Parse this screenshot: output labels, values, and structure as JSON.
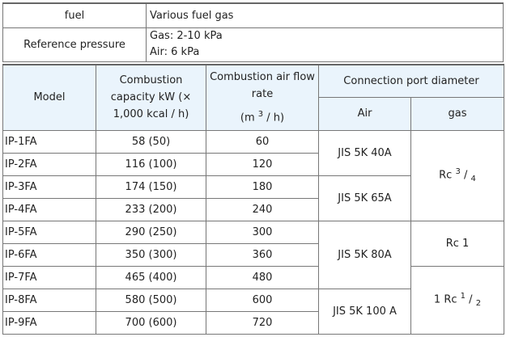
{
  "spec": {
    "fuel_label": "fuel",
    "fuel_value": "Various fuel gas",
    "pressure_label": "Reference pressure",
    "pressure_gas": "Gas: 2-10 kPa",
    "pressure_air": "Air: 6 kPa"
  },
  "table": {
    "headers": {
      "model": "Model",
      "capacity": "Combustion capacity kW (× 1,000 kcal / h)",
      "airflow": "Combustion air flow rate",
      "airflow_unit_pre": "(m",
      "airflow_unit_sup": "3",
      "airflow_unit_post": "/ h)",
      "connection": "Connection port diameter",
      "air": "Air",
      "gas": "gas"
    },
    "rows": [
      {
        "model": "IP-1FA",
        "capacity": "58 (50)",
        "airflow": "60"
      },
      {
        "model": "IP-2FA",
        "capacity": "116 (100)",
        "airflow": "120"
      },
      {
        "model": "IP-3FA",
        "capacity": "174 (150)",
        "airflow": "180"
      },
      {
        "model": "IP-4FA",
        "capacity": "233 (200)",
        "airflow": "240"
      },
      {
        "model": "IP-5FA",
        "capacity": "290 (250)",
        "airflow": "300"
      },
      {
        "model": "IP-6FA",
        "capacity": "350 (300)",
        "airflow": "360"
      },
      {
        "model": "IP-7FA",
        "capacity": "465 (400)",
        "airflow": "480"
      },
      {
        "model": "IP-8FA",
        "capacity": "580 (500)",
        "airflow": "600"
      },
      {
        "model": "IP-9FA",
        "capacity": "700 (600)",
        "airflow": "720"
      }
    ],
    "air_ports": [
      "JIS 5K 40A",
      "JIS 5K 65A",
      "JIS 5K 80A",
      "JIS 5K 100 A"
    ],
    "gas_ports": [
      {
        "pre": "Rc",
        "sup": "3",
        "sub": "4"
      },
      {
        "pre": "Rc 1"
      },
      {
        "pre": "1 Rc",
        "sup": "1",
        "sub": "2"
      }
    ]
  }
}
